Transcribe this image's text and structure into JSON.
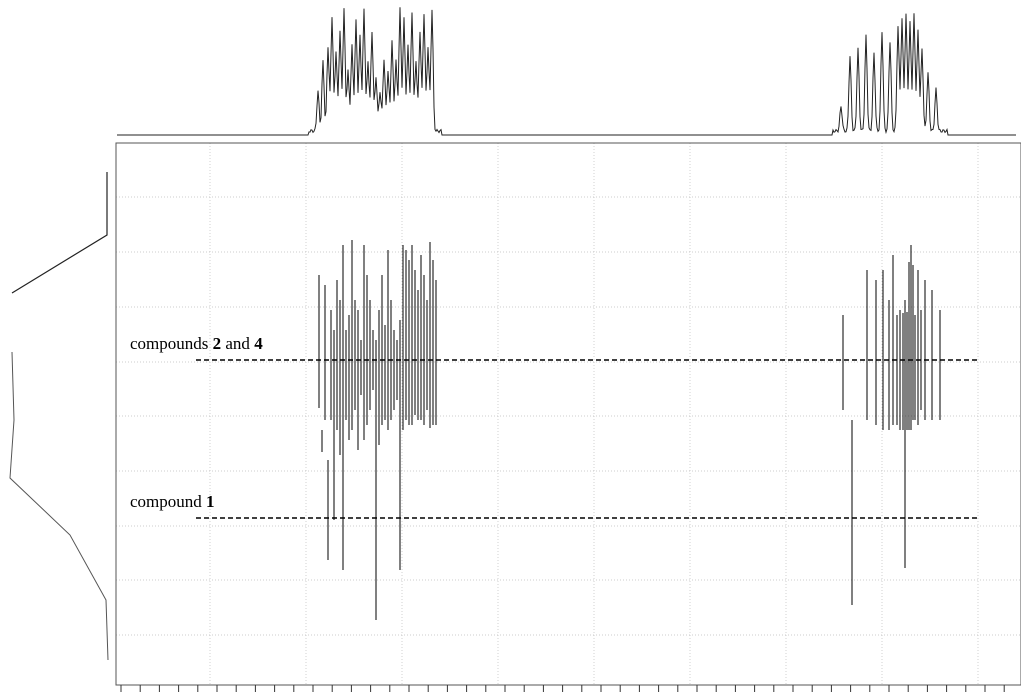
{
  "chart_data": {
    "type": "2d-nmr-dosy",
    "title": "",
    "xlabel": "",
    "ylabel": "",
    "grid": true,
    "annotations": [
      {
        "id": "compounds-2-and-4",
        "prefix": "compounds ",
        "n1": "2",
        "mid": " and ",
        "n2": "4",
        "level": 0.5
      },
      {
        "id": "compound-1",
        "prefix": "compound ",
        "n1": "1",
        "mid": "",
        "n2": "",
        "level": 0.78
      }
    ],
    "peak_groups": [
      {
        "name": "",
        "center": 0.3,
        "width": 0.14
      },
      {
        "name": "",
        "center": 0.9,
        "width": 0.11
      }
    ]
  }
}
